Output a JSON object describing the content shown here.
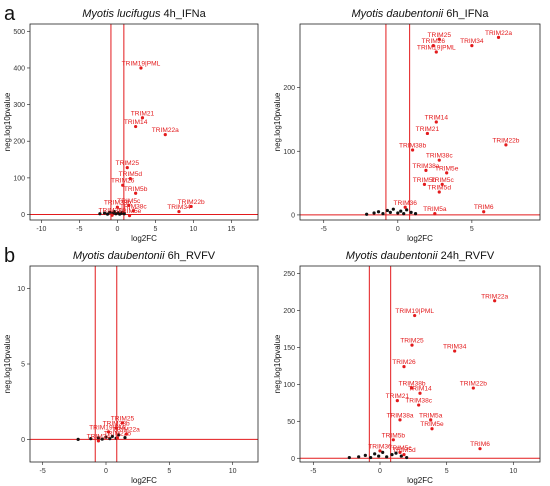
{
  "chart_data": [
    {
      "panel": "a",
      "type": "scatter",
      "title_species": "Myotis lucifugus",
      "title_rest": " 4h_IFNa",
      "xlabel": "log2FC",
      "ylabel": "neg.log10pvalue",
      "xlim": [
        -11.5,
        18.5
      ],
      "ylim": [
        -15,
        520
      ],
      "xticks": [
        -10,
        -5,
        0,
        5,
        10,
        15
      ],
      "yticks": [
        0,
        100,
        200,
        300,
        400,
        500
      ],
      "vlines": [
        -0.85,
        0.85
      ],
      "hline": 0,
      "labeled_points": [
        {
          "label": "TRIM19|PML",
          "x": 3.1,
          "y": 400
        },
        {
          "label": "TRIM21",
          "x": 3.3,
          "y": 264
        },
        {
          "label": "TRIM14",
          "x": 2.4,
          "y": 240
        },
        {
          "label": "TRIM22a",
          "x": 6.3,
          "y": 218
        },
        {
          "label": "TRIM25",
          "x": 1.3,
          "y": 128
        },
        {
          "label": "TRIM5d",
          "x": 1.7,
          "y": 98
        },
        {
          "label": "TRIM26",
          "x": 0.7,
          "y": 80
        },
        {
          "label": "TRIM5b",
          "x": 2.4,
          "y": 58
        },
        {
          "label": "TRIM5c",
          "x": 1.5,
          "y": 25
        },
        {
          "label": "TRIM38b",
          "x": 0.0,
          "y": 20
        },
        {
          "label": "TRIM38c",
          "x": 2.1,
          "y": 10
        },
        {
          "label": "TRIM22b",
          "x": 9.7,
          "y": 22
        },
        {
          "label": "TRIM34",
          "x": 8.1,
          "y": 8
        },
        {
          "label": "TRIM38a",
          "x": -0.7,
          "y": -2
        },
        {
          "label": "TRIM5e",
          "x": 1.6,
          "y": -3
        }
      ],
      "other_points_x": [
        -2.3,
        -1.7,
        -1.3,
        -1.0,
        -0.6,
        -0.4,
        -0.2,
        0.1,
        0.3,
        0.5,
        0.6,
        0.9
      ],
      "other_points_y": [
        2,
        4,
        1,
        6,
        3,
        8,
        2,
        5,
        1,
        3,
        6,
        2
      ]
    },
    {
      "panel": "",
      "type": "scatter",
      "title_species": "Myotis daubentonii",
      "title_rest": " 6h_IFNa",
      "xlabel": "log2FC",
      "ylabel": "neg.log10pvalue",
      "xlim": [
        -6.6,
        9.6
      ],
      "ylim": [
        -8,
        300
      ],
      "xticks": [
        -5,
        0,
        5
      ],
      "yticks": [
        0,
        100,
        200
      ],
      "vlines": [
        -0.8,
        0.8
      ],
      "hline": 0,
      "labeled_points": [
        {
          "label": "TRIM25",
          "x": 2.8,
          "y": 276
        },
        {
          "label": "TRIM22a",
          "x": 6.8,
          "y": 279
        },
        {
          "label": "TRIM26",
          "x": 2.4,
          "y": 266
        },
        {
          "label": "TRIM34",
          "x": 5.0,
          "y": 266
        },
        {
          "label": "TRIM19|PML",
          "x": 2.6,
          "y": 256
        },
        {
          "label": "TRIM14",
          "x": 2.6,
          "y": 146
        },
        {
          "label": "TRIM21",
          "x": 2.0,
          "y": 128
        },
        {
          "label": "TRIM22b",
          "x": 7.3,
          "y": 110
        },
        {
          "label": "TRIM38b",
          "x": 1.0,
          "y": 102
        },
        {
          "label": "TRIM38c",
          "x": 2.8,
          "y": 86
        },
        {
          "label": "TRIM38a",
          "x": 1.9,
          "y": 70
        },
        {
          "label": "TRIM5e",
          "x": 3.3,
          "y": 66
        },
        {
          "label": "TRIM5b",
          "x": 1.8,
          "y": 48
        },
        {
          "label": "TRIM5c",
          "x": 3.0,
          "y": 48
        },
        {
          "label": "TRIM5d",
          "x": 2.8,
          "y": 36
        },
        {
          "label": "TRIM36",
          "x": 0.5,
          "y": 12
        },
        {
          "label": "TRIM6",
          "x": 5.8,
          "y": 5
        },
        {
          "label": "TRIM5a",
          "x": 2.5,
          "y": 2
        }
      ],
      "other_points_x": [
        -2.1,
        -1.6,
        -1.3,
        -1.0,
        -0.7,
        -0.5,
        -0.3,
        0.0,
        0.2,
        0.4,
        0.6,
        0.9,
        1.2
      ],
      "other_points_y": [
        1,
        3,
        5,
        2,
        7,
        4,
        9,
        3,
        6,
        2,
        8,
        4,
        2
      ]
    },
    {
      "panel": "b",
      "type": "scatter",
      "title_species": "Myotis daubentonii",
      "title_rest": "  6h_RVFV",
      "xlabel": "log2FC",
      "ylabel": "neg.log10pvalue",
      "xlim": [
        -6,
        12
      ],
      "ylim": [
        -1.5,
        11.5
      ],
      "xticks": [
        -5,
        0,
        5,
        10
      ],
      "yticks": [
        0,
        5,
        10
      ],
      "vlines": [
        -0.85,
        0.85
      ],
      "hline": 0,
      "labeled_points": [
        {
          "label": "TRIM25",
          "x": 1.3,
          "y": 1.1
        },
        {
          "label": "TRIM38b",
          "x": 0.8,
          "y": 0.75
        },
        {
          "label": "TRIM19|PML",
          "x": 0.2,
          "y": 0.5
        },
        {
          "label": "TRIM22a",
          "x": 1.6,
          "y": 0.35
        },
        {
          "label": "TRIM22b",
          "x": 0.9,
          "y": 0.1
        },
        {
          "label": "TRIM34",
          "x": -0.6,
          "y": -0.1
        }
      ],
      "other_points_x": [
        -2.2,
        -1.2,
        -0.6,
        -0.3,
        0.0,
        0.3,
        0.5,
        0.8,
        1.0,
        1.5
      ],
      "other_points_y": [
        0.0,
        0.05,
        0.1,
        0.02,
        0.15,
        0.05,
        0.2,
        0.08,
        0.3,
        0.12
      ]
    },
    {
      "panel": "",
      "type": "scatter",
      "title_species": "Myotis daubentonii",
      "title_rest": " 24h_RVFV",
      "xlabel": "log2FC",
      "ylabel": "neg.log10pvalue",
      "xlim": [
        -6,
        12
      ],
      "ylim": [
        -5,
        260
      ],
      "xticks": [
        -5,
        0,
        5,
        10
      ],
      "yticks": [
        0,
        50,
        100,
        150,
        200,
        250
      ],
      "vlines": [
        -0.8,
        0.8
      ],
      "hline": 0,
      "labeled_points": [
        {
          "label": "TRIM22a",
          "x": 8.6,
          "y": 213
        },
        {
          "label": "TRIM19|PML",
          "x": 2.6,
          "y": 193
        },
        {
          "label": "TRIM25",
          "x": 2.4,
          "y": 153
        },
        {
          "label": "TRIM34",
          "x": 5.6,
          "y": 145
        },
        {
          "label": "TRIM26",
          "x": 1.8,
          "y": 124
        },
        {
          "label": "TRIM38b",
          "x": 2.4,
          "y": 95
        },
        {
          "label": "TRIM22b",
          "x": 7.0,
          "y": 95
        },
        {
          "label": "TRIM14",
          "x": 3.0,
          "y": 88
        },
        {
          "label": "TRIM21",
          "x": 1.3,
          "y": 78
        },
        {
          "label": "TRIM38c",
          "x": 2.9,
          "y": 72
        },
        {
          "label": "TRIM38a",
          "x": 1.5,
          "y": 52
        },
        {
          "label": "TRIM5a",
          "x": 3.8,
          "y": 52
        },
        {
          "label": "TRIM5e",
          "x": 3.9,
          "y": 40
        },
        {
          "label": "TRIM5b",
          "x": 1.0,
          "y": 25
        },
        {
          "label": "TRIM6",
          "x": 7.5,
          "y": 13
        },
        {
          "label": "TRIM36",
          "x": 0.0,
          "y": 10
        },
        {
          "label": "TRIM5c",
          "x": 1.5,
          "y": 8
        },
        {
          "label": "TRIM5d",
          "x": 1.8,
          "y": 5
        }
      ],
      "other_points_x": [
        -2.3,
        -1.6,
        -1.1,
        -0.7,
        -0.4,
        -0.1,
        0.2,
        0.5,
        0.9,
        1.2,
        1.6,
        2.0
      ],
      "other_points_y": [
        1,
        2,
        4,
        1,
        6,
        3,
        8,
        2,
        5,
        7,
        3,
        1
      ]
    }
  ]
}
